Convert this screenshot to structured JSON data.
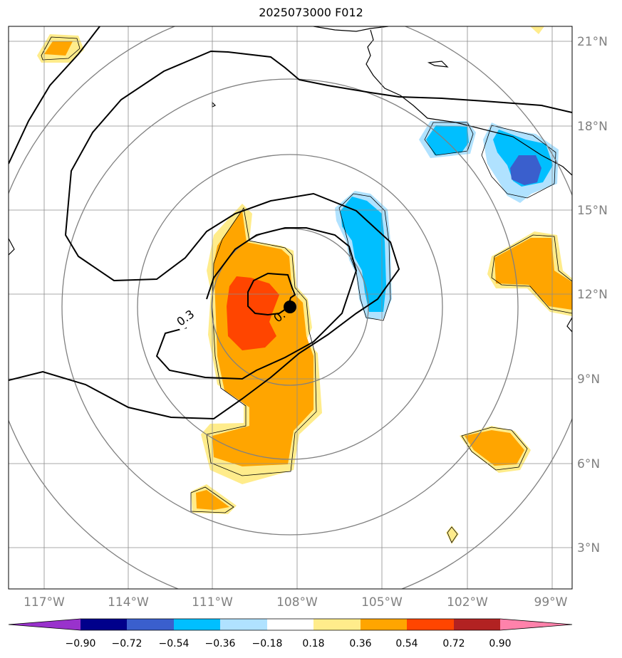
{
  "title": "2025073000 F012",
  "lon_labels": [
    "117°W",
    "114°W",
    "111°W",
    "108°W",
    "105°W",
    "102°W",
    "99°W"
  ],
  "lat_labels": [
    "21°N",
    "18°N",
    "15°N",
    "12°N",
    "9°N",
    "6°N",
    "3°N"
  ],
  "contour_labels": [
    "0.3",
    "0."
  ],
  "colorbar": {
    "colors": [
      "#9932cc",
      "#00008b",
      "#3a5fcd",
      "#00bfff",
      "#b0e2ff",
      "#ffffff",
      "#ffec8b",
      "#ffa500",
      "#ff4500",
      "#b22222",
      "#ff82ab"
    ],
    "tick_labels": [
      "−0.90",
      "−0.72",
      "−0.54",
      "−0.36",
      "−0.18",
      "0.18",
      "0.36",
      "0.54",
      "0.72",
      "0.90"
    ]
  },
  "center_marker": "storm-center",
  "fill_colors": {
    "light_yellow": "#ffec8b",
    "orange": "#ffa500",
    "red_orange": "#ff4500",
    "light_blue": "#b0e2ff",
    "deep_sky_blue": "#00bfff",
    "royal_blue": "#3a5fcd"
  }
}
